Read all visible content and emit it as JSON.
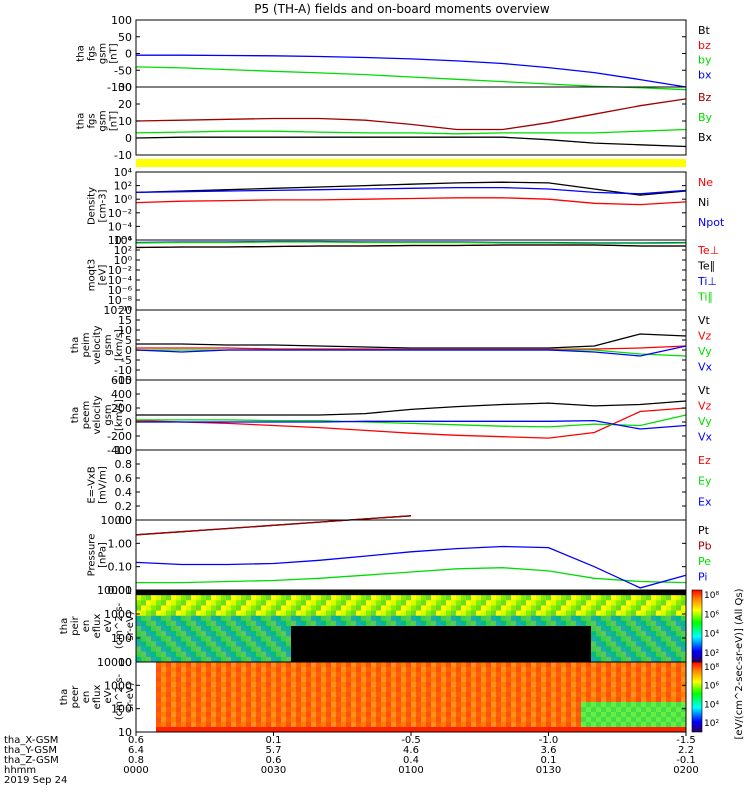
{
  "title": "P5 (TH-A) fields and on-board moments overview",
  "colors": {
    "black": "#000000",
    "red": "#ff0000",
    "darkred": "#a00000",
    "green": "#00dd00",
    "blue": "#0000ff",
    "yellow": "#ffff00"
  },
  "footer": {
    "rows": [
      "tha_X-GSM",
      "tha_Y-GSM",
      "tha_Z-GSM",
      "hhmm",
      "2019 Sep 24"
    ],
    "columns": [
      {
        "values": [
          "0.6",
          "6.4",
          "0.8",
          "0000"
        ]
      },
      {
        "values": [
          "0.1",
          "5.7",
          "0.6",
          "0030"
        ]
      },
      {
        "values": [
          "-0.5",
          "4.6",
          "0.4",
          "0100"
        ]
      },
      {
        "values": [
          "-1.0",
          "3.6",
          "0.1",
          "0130"
        ]
      },
      {
        "values": [
          "-1.5",
          "2.2",
          "-0.1",
          "0200"
        ]
      }
    ]
  },
  "colorbar": {
    "ticks": [
      "10²",
      "10⁴",
      "10⁶",
      "10⁸"
    ],
    "label": "[eV/(cm^2-sec-sr-eV)] (All Qs)"
  },
  "chart_data": [
    {
      "type": "line",
      "ylabel": [
        "tha",
        "fgs",
        "gsm",
        "[nT]"
      ],
      "yticks": [
        "100",
        "50",
        "0",
        "-50",
        "-100"
      ],
      "ylim": [
        -100,
        100
      ],
      "x": [
        0,
        10,
        20,
        30,
        40,
        50,
        60,
        70,
        80,
        90,
        100,
        110,
        120
      ],
      "series": [
        {
          "name": "Bt",
          "color": "#000000",
          "values": [
            null,
            null,
            null,
            null,
            null,
            null,
            null,
            null,
            null,
            null,
            null,
            null,
            null
          ]
        },
        {
          "name": "bz",
          "color": "#ff0000",
          "values": [
            null,
            null,
            null,
            null,
            null,
            null,
            null,
            null,
            null,
            null,
            null,
            null,
            null
          ]
        },
        {
          "name": "by",
          "color": "#00dd00",
          "values": [
            -40,
            -43,
            -48,
            -53,
            -58,
            -63,
            -70,
            -77,
            -84,
            -91,
            -98,
            -102,
            -108
          ]
        },
        {
          "name": "bx",
          "color": "#0000ff",
          "values": [
            -5,
            -5,
            -6,
            -7,
            -9,
            -12,
            -16,
            -22,
            -30,
            -42,
            -57,
            -78,
            -100
          ]
        }
      ]
    },
    {
      "type": "line",
      "ylabel": [
        "tha",
        "fgs",
        "gsm",
        "[nT]"
      ],
      "yticks": [
        "30",
        "20",
        "10",
        "0",
        "-10"
      ],
      "ylim": [
        -10,
        30
      ],
      "x": [
        0,
        10,
        20,
        30,
        40,
        50,
        60,
        70,
        80,
        90,
        100,
        110,
        120
      ],
      "series": [
        {
          "name": "Bz",
          "color": "#a00000",
          "values": [
            10,
            10.5,
            11,
            11.5,
            11.5,
            10.5,
            8,
            5,
            5,
            9,
            14,
            19,
            23
          ]
        },
        {
          "name": "By",
          "color": "#00dd00",
          "values": [
            3,
            3.5,
            4,
            4,
            3.5,
            3,
            3,
            2.5,
            3,
            3,
            3,
            4,
            5
          ]
        },
        {
          "name": "Bx",
          "color": "#000000",
          "values": [
            0,
            0.5,
            0.5,
            0.5,
            0.5,
            0.5,
            0.5,
            0.5,
            0.5,
            -1,
            -3,
            -4,
            -5
          ]
        }
      ]
    },
    {
      "type": "line",
      "ylabel": [
        "Density",
        "[cm-3]"
      ],
      "yticks": [
        "10⁴",
        "10²",
        "10⁰",
        "10⁻²",
        "10⁻⁴",
        "10⁻⁶"
      ],
      "log": true,
      "ylim": [
        -6,
        4
      ],
      "x": [
        0,
        10,
        20,
        30,
        40,
        50,
        60,
        70,
        80,
        90,
        100,
        110,
        120
      ],
      "series": [
        {
          "name": "Ne",
          "color": "#ff0000",
          "values": [
            -0.5,
            -0.3,
            -0.2,
            -0.1,
            -0.1,
            0,
            0.1,
            0.2,
            0.2,
            0,
            -0.6,
            -0.8,
            -0.4
          ]
        },
        {
          "name": "Ni",
          "color": "#000000",
          "values": [
            1,
            1.2,
            1.4,
            1.6,
            1.8,
            2,
            2.2,
            2.4,
            2.5,
            2.4,
            1.5,
            0.6,
            1.2
          ]
        },
        {
          "name": "Npot",
          "color": "#0000ff",
          "values": [
            1,
            1.1,
            1.2,
            1.3,
            1.4,
            1.5,
            1.6,
            1.7,
            1.7,
            1.5,
            1,
            0.8,
            1.3
          ]
        }
      ]
    },
    {
      "type": "line",
      "ylabel": [
        "moqt3",
        "[eV]"
      ],
      "yticks": [
        "10⁴",
        "10²",
        "10⁰",
        "10⁻²",
        "10⁻⁴",
        "10⁻⁶",
        "10⁻⁸",
        "10⁻¹⁰"
      ],
      "log": true,
      "ylim": [
        -10,
        4
      ],
      "x": [
        0,
        10,
        20,
        30,
        40,
        50,
        60,
        70,
        80,
        90,
        100,
        110,
        120
      ],
      "series": [
        {
          "name": "Te⊥",
          "color": "#ff0000",
          "values": [
            2.5,
            2.6,
            2.6,
            2.7,
            2.8,
            2.8,
            2.9,
            2.9,
            3,
            3,
            3,
            2.8,
            2.8
          ]
        },
        {
          "name": "Te∥",
          "color": "#000000",
          "values": [
            2.5,
            2.6,
            2.6,
            2.7,
            2.8,
            2.8,
            2.9,
            2.9,
            3,
            3,
            3,
            2.8,
            2.8
          ]
        },
        {
          "name": "Ti⊥",
          "color": "#0000ff",
          "values": [
            3.5,
            3.6,
            3.6,
            3.7,
            3.7,
            3.6,
            3.6,
            3.6,
            3.5,
            3.5,
            3.4,
            3.4,
            3.5
          ]
        },
        {
          "name": "Ti∥",
          "color": "#00dd00",
          "values": [
            3.4,
            3.5,
            3.5,
            3.6,
            3.6,
            3.5,
            3.5,
            3.5,
            3.4,
            3.4,
            3.3,
            3.3,
            3.4
          ]
        }
      ]
    },
    {
      "type": "line",
      "ylabel": [
        "tha",
        "peim",
        "velocity",
        "gsm",
        "[km/s]"
      ],
      "yticks": [
        "20",
        "15",
        "10",
        "5",
        "0",
        "-5",
        "-10",
        "-15"
      ],
      "ylim": [
        -15,
        20
      ],
      "x": [
        0,
        10,
        20,
        30,
        40,
        50,
        60,
        70,
        80,
        90,
        100,
        110,
        120
      ],
      "series": [
        {
          "name": "Vt",
          "color": "#000000",
          "values": [
            3,
            3,
            2.5,
            2.5,
            2,
            1.5,
            1,
            1,
            1,
            1,
            2,
            8,
            7
          ]
        },
        {
          "name": "Vz",
          "color": "#ff0000",
          "values": [
            1,
            1,
            1,
            0.5,
            0.5,
            0.5,
            0.3,
            0.3,
            0.3,
            0.3,
            0.5,
            1,
            2
          ]
        },
        {
          "name": "Vy",
          "color": "#00dd00",
          "values": [
            0,
            0,
            0,
            0,
            0,
            0,
            0,
            0,
            0,
            0,
            0,
            -2,
            -3
          ]
        },
        {
          "name": "Vx",
          "color": "#0000ff",
          "values": [
            0,
            -1,
            0,
            0,
            0,
            0,
            0,
            0,
            0,
            0,
            -1,
            -3,
            2
          ]
        }
      ]
    },
    {
      "type": "line",
      "ylabel": [
        "tha",
        "peem",
        "velocity",
        "gsm",
        "[km/s]"
      ],
      "yticks": [
        "600",
        "400",
        "200",
        "0",
        "-200",
        "-400"
      ],
      "ylim": [
        -400,
        600
      ],
      "x": [
        0,
        10,
        20,
        30,
        40,
        50,
        60,
        70,
        80,
        90,
        100,
        110,
        120
      ],
      "series": [
        {
          "name": "Vt",
          "color": "#000000",
          "values": [
            100,
            100,
            100,
            100,
            100,
            120,
            180,
            220,
            250,
            270,
            230,
            250,
            300
          ]
        },
        {
          "name": "Vz",
          "color": "#ff0000",
          "values": [
            20,
            0,
            -20,
            -50,
            -80,
            -120,
            -160,
            -190,
            -210,
            -230,
            -150,
            150,
            200
          ]
        },
        {
          "name": "Vy",
          "color": "#00dd00",
          "values": [
            30,
            30,
            30,
            20,
            20,
            0,
            -20,
            -40,
            -60,
            -70,
            -30,
            -50,
            100
          ]
        },
        {
          "name": "Vx",
          "color": "#0000ff",
          "values": [
            0,
            0,
            0,
            0,
            0,
            10,
            10,
            10,
            10,
            10,
            20,
            -100,
            -50
          ]
        }
      ]
    },
    {
      "type": "line",
      "ylabel": [
        "E=-VxB",
        "[mV/m]"
      ],
      "yticks": [
        "1.0",
        "0.8",
        "0.6",
        "0.4",
        "0.2",
        "0.0"
      ],
      "ylim": [
        0,
        1
      ],
      "x": [],
      "series": [
        {
          "name": "Ez",
          "color": "#ff0000",
          "values": []
        },
        {
          "name": "Ey",
          "color": "#00dd00",
          "values": []
        },
        {
          "name": "Ex",
          "color": "#0000ff",
          "values": []
        }
      ]
    },
    {
      "type": "line",
      "ylabel": [
        "Pressure",
        "[nPa]"
      ],
      "yticks": [
        "10.00",
        "1.00",
        "0.10",
        "0.01"
      ],
      "log": true,
      "ylim": [
        -2,
        1.3
      ],
      "x": [
        0,
        10,
        20,
        30,
        40,
        50,
        60,
        70,
        80,
        90,
        100,
        110,
        120
      ],
      "series": [
        {
          "name": "Pt",
          "color": "#000000",
          "values": [
            0.6,
            0.75,
            0.9,
            1.05,
            1.2,
            1.35,
            1.5,
            null,
            null,
            null,
            null,
            null,
            null
          ]
        },
        {
          "name": "Pb",
          "color": "#a00000",
          "values": [
            0.6,
            0.75,
            0.9,
            1.05,
            1.2,
            1.35,
            1.5,
            null,
            null,
            null,
            null,
            null,
            null
          ]
        },
        {
          "name": "Pe",
          "color": "#00dd00",
          "values": [
            -1.65,
            -1.65,
            -1.6,
            -1.55,
            -1.45,
            -1.3,
            -1.15,
            -1.0,
            -0.95,
            -1.1,
            -1.45,
            -1.6,
            -1.65
          ]
        },
        {
          "name": "Pi",
          "color": "#0000ff",
          "values": [
            -0.7,
            -0.8,
            -0.8,
            -0.75,
            -0.6,
            -0.4,
            -0.2,
            -0.05,
            0.05,
            0,
            -0.9,
            -1.9,
            -1.3
          ]
        }
      ]
    },
    {
      "type": "heatmap",
      "ylabel": [
        "tha",
        "peir",
        "en",
        "eflux",
        "eV",
        "(cm^2-s-",
        "sr-eV)"
      ],
      "yticks": [
        "10000",
        "1000",
        "100",
        "10"
      ],
      "log": true,
      "ylim": [
        0.8,
        4.2
      ]
    },
    {
      "type": "heatmap",
      "ylabel": [
        "tha",
        "peer",
        "en",
        "eflux",
        "eV",
        "(cm^2-s-",
        "sr-eV)"
      ],
      "yticks": [
        "10000",
        "1000",
        "100",
        "10"
      ],
      "log": true,
      "ylim": [
        0.8,
        4.2
      ]
    }
  ]
}
